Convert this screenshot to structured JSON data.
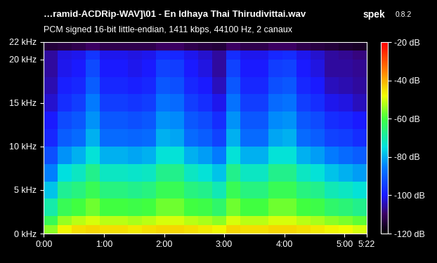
{
  "chart_data": {
    "type": "heatmap",
    "title": "…ramid-ACDRip-WAV]\\01 - En Idhaya Thai Thirudivittai.wav",
    "app": "spek",
    "version": "0.8.2",
    "subtitle": "PCM signed 16-bit little-endian, 1411 kbps, 44100 Hz, 2 canaux",
    "xlim": [
      0,
      322
    ],
    "ylim": [
      0,
      22
    ],
    "xticks": [
      {
        "value": 0,
        "label": "0:00"
      },
      {
        "value": 60,
        "label": "1:00"
      },
      {
        "value": 120,
        "label": "2:00"
      },
      {
        "value": 180,
        "label": "3:00"
      },
      {
        "value": 240,
        "label": "4:00"
      },
      {
        "value": 300,
        "label": "5:00"
      },
      {
        "value": 322,
        "label": "5:22"
      }
    ],
    "yticks": [
      {
        "value": 0,
        "label": "0 kHz"
      },
      {
        "value": 5,
        "label": "5 kHz"
      },
      {
        "value": 10,
        "label": "10 kHz"
      },
      {
        "value": 15,
        "label": "15 kHz"
      },
      {
        "value": 20,
        "label": "20 kHz"
      },
      {
        "value": 22,
        "label": "22 kHz"
      }
    ],
    "x_edges": [
      0,
      14,
      28,
      42,
      56,
      70,
      84,
      98,
      112,
      126,
      140,
      154,
      168,
      182,
      196,
      210,
      224,
      238,
      252,
      266,
      280,
      294,
      308,
      322
    ],
    "y_edges": [
      0,
      1,
      2,
      4,
      6,
      8,
      10,
      12,
      14,
      16,
      18,
      20,
      21,
      22
    ],
    "cells": [
      [
        -55,
        -47,
        -45,
        -44,
        -45,
        -45,
        -46,
        -45,
        -44,
        -44,
        -45,
        -46,
        -47,
        -44,
        -45,
        -45,
        -44,
        -44,
        -45,
        -46,
        -47,
        -48,
        -50
      ],
      [
        -62,
        -54,
        -52,
        -50,
        -52,
        -52,
        -53,
        -52,
        -50,
        -50,
        -52,
        -53,
        -55,
        -50,
        -52,
        -52,
        -50,
        -50,
        -52,
        -53,
        -55,
        -56,
        -58
      ],
      [
        -70,
        -62,
        -60,
        -57,
        -60,
        -60,
        -61,
        -60,
        -57,
        -57,
        -60,
        -61,
        -64,
        -57,
        -60,
        -60,
        -57,
        -57,
        -60,
        -61,
        -64,
        -65,
        -67
      ],
      [
        -78,
        -68,
        -66,
        -62,
        -66,
        -66,
        -67,
        -66,
        -62,
        -62,
        -66,
        -67,
        -71,
        -62,
        -66,
        -66,
        -62,
        -62,
        -66,
        -67,
        -71,
        -72,
        -74
      ],
      [
        -85,
        -75,
        -72,
        -67,
        -72,
        -72,
        -73,
        -72,
        -67,
        -67,
        -72,
        -74,
        -78,
        -67,
        -72,
        -72,
        -67,
        -67,
        -72,
        -74,
        -78,
        -80,
        -82
      ],
      [
        -92,
        -83,
        -80,
        -74,
        -80,
        -80,
        -81,
        -80,
        -74,
        -74,
        -80,
        -82,
        -86,
        -74,
        -80,
        -80,
        -74,
        -74,
        -80,
        -82,
        -86,
        -88,
        -90
      ],
      [
        -98,
        -90,
        -88,
        -80,
        -88,
        -88,
        -89,
        -88,
        -80,
        -81,
        -88,
        -90,
        -94,
        -80,
        -88,
        -88,
        -81,
        -80,
        -88,
        -90,
        -94,
        -95,
        -97
      ],
      [
        -100,
        -93,
        -91,
        -83,
        -91,
        -91,
        -92,
        -91,
        -83,
        -84,
        -91,
        -93,
        -97,
        -83,
        -91,
        -91,
        -84,
        -83,
        -91,
        -93,
        -97,
        -98,
        -100
      ],
      [
        -103,
        -97,
        -95,
        -86,
        -95,
        -95,
        -96,
        -95,
        -87,
        -88,
        -95,
        -97,
        -101,
        -87,
        -95,
        -95,
        -88,
        -87,
        -95,
        -97,
        -101,
        -102,
        -104
      ],
      [
        -105,
        -99,
        -98,
        -90,
        -98,
        -98,
        -99,
        -98,
        -91,
        -92,
        -98,
        -100,
        -104,
        -91,
        -98,
        -98,
        -92,
        -91,
        -98,
        -100,
        -104,
        -105,
        -106
      ],
      [
        -106,
        -101,
        -100,
        -93,
        -100,
        -100,
        -101,
        -100,
        -94,
        -95,
        -100,
        -102,
        -106,
        -94,
        -100,
        -100,
        -95,
        -94,
        -100,
        -102,
        -106,
        -106,
        -107
      ],
      [
        -106,
        -102,
        -101,
        -96,
        -101,
        -101,
        -102,
        -101,
        -97,
        -98,
        -101,
        -103,
        -106,
        -97,
        -101,
        -101,
        -98,
        -97,
        -101,
        -103,
        -106,
        -107,
        -108
      ],
      [
        -114,
        -113,
        -112,
        -110,
        -112,
        -112,
        -112,
        -112,
        -110,
        -110,
        -112,
        -113,
        -114,
        -110,
        -112,
        -112,
        -110,
        -110,
        -112,
        -113,
        -114,
        -115,
        -116
      ]
    ],
    "colorbar_range": [
      -120,
      -20
    ],
    "colorbar_ticks": [
      {
        "value": -20,
        "label": "-20 dB"
      },
      {
        "value": -40,
        "label": "-40 dB"
      },
      {
        "value": -60,
        "label": "-60 dB"
      },
      {
        "value": -80,
        "label": "-80 dB"
      },
      {
        "value": -100,
        "label": "-100 dB"
      },
      {
        "value": -120,
        "label": "-120 dB"
      }
    ]
  }
}
